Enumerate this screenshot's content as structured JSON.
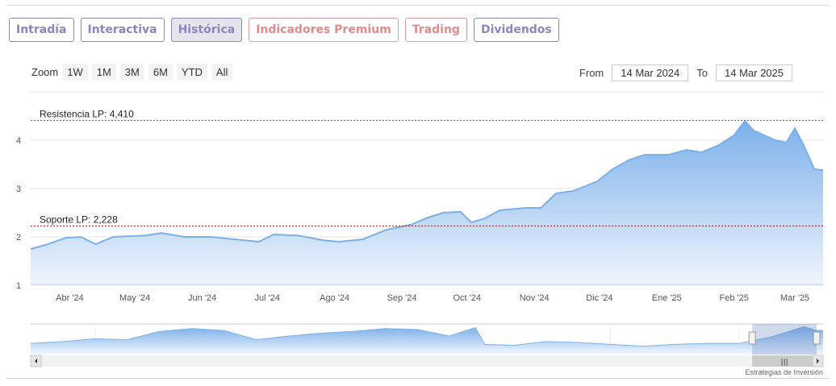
{
  "tabs": [
    {
      "label": "Intradía",
      "style": "normal"
    },
    {
      "label": "Interactiva",
      "style": "normal"
    },
    {
      "label": "Histórica",
      "style": "active"
    },
    {
      "label": "Indicadores Premium",
      "style": "red"
    },
    {
      "label": "Trading",
      "style": "red"
    },
    {
      "label": "Dividendos",
      "style": "normal"
    }
  ],
  "zoom": {
    "label": "Zoom",
    "buttons": [
      "1W",
      "1M",
      "3M",
      "6M",
      "YTD",
      "All"
    ]
  },
  "range": {
    "from_label": "From",
    "from": "14 Mar 2024",
    "to_label": "To",
    "to": "14 Mar 2025"
  },
  "credit": "Estrategias de Inversión",
  "chart_data": {
    "type": "area",
    "x_unit": "days since 14 Mar 2024",
    "xlim": [
      0,
      365
    ],
    "ylim": [
      0.9,
      4.65
    ],
    "yticks": [
      1,
      2,
      3,
      4
    ],
    "xticks": [
      {
        "day": 18,
        "label": "Abr '24"
      },
      {
        "day": 48,
        "label": "May '24"
      },
      {
        "day": 79,
        "label": "Jun '24"
      },
      {
        "day": 109,
        "label": "Jul '24"
      },
      {
        "day": 140,
        "label": "Ago '24"
      },
      {
        "day": 171,
        "label": "Sep '24"
      },
      {
        "day": 201,
        "label": "Oct '24"
      },
      {
        "day": 232,
        "label": "Nov '24"
      },
      {
        "day": 262,
        "label": "Dic '24"
      },
      {
        "day": 293,
        "label": "Ene '25"
      },
      {
        "day": 324,
        "label": "Feb '25"
      },
      {
        "day": 352,
        "label": "Mar '25"
      }
    ],
    "series": [
      [
        0,
        1.75
      ],
      [
        8,
        1.85
      ],
      [
        16,
        1.98
      ],
      [
        23,
        2.0
      ],
      [
        30,
        1.85
      ],
      [
        38,
        2.0
      ],
      [
        53,
        2.03
      ],
      [
        60,
        2.08
      ],
      [
        71,
        2.0
      ],
      [
        83,
        2.0
      ],
      [
        94,
        1.95
      ],
      [
        105,
        1.9
      ],
      [
        112,
        2.05
      ],
      [
        123,
        2.03
      ],
      [
        135,
        1.93
      ],
      [
        142,
        1.9
      ],
      [
        153,
        1.95
      ],
      [
        164,
        2.15
      ],
      [
        175,
        2.25
      ],
      [
        183,
        2.4
      ],
      [
        190,
        2.5
      ],
      [
        198,
        2.52
      ],
      [
        203,
        2.3
      ],
      [
        209,
        2.38
      ],
      [
        216,
        2.55
      ],
      [
        228,
        2.6
      ],
      [
        235,
        2.6
      ],
      [
        242,
        2.9
      ],
      [
        250,
        2.95
      ],
      [
        261,
        3.15
      ],
      [
        268,
        3.4
      ],
      [
        276,
        3.6
      ],
      [
        283,
        3.7
      ],
      [
        294,
        3.7
      ],
      [
        302,
        3.8
      ],
      [
        309,
        3.75
      ],
      [
        317,
        3.9
      ],
      [
        324,
        4.1
      ],
      [
        329,
        4.4
      ],
      [
        333,
        4.2
      ],
      [
        343,
        4.0
      ],
      [
        348,
        3.95
      ],
      [
        352,
        4.25
      ],
      [
        356,
        3.9
      ],
      [
        361,
        3.4
      ],
      [
        365,
        3.38
      ]
    ],
    "lines": [
      {
        "label": "Resistencia LP: 4,410",
        "value": 4.41,
        "color": "#2e7d32"
      },
      {
        "label": "Soporte LP: 2,228",
        "value": 2.228,
        "color": "#a01010"
      }
    ],
    "navigator": {
      "xlim": [
        2013,
        2025.3
      ],
      "ylim": [
        0,
        3.3
      ],
      "xticks": [
        "2014",
        "2016",
        "2018",
        "2020",
        "2022",
        "2024"
      ],
      "series": [
        [
          2013,
          1.2
        ],
        [
          2013.5,
          1.4
        ],
        [
          2014,
          1.7
        ],
        [
          2014.5,
          1.6
        ],
        [
          2015,
          2.5
        ],
        [
          2015.5,
          2.8
        ],
        [
          2016,
          2.6
        ],
        [
          2016.5,
          1.6
        ],
        [
          2017,
          2.0
        ],
        [
          2017.5,
          2.3
        ],
        [
          2018,
          2.5
        ],
        [
          2018.5,
          2.8
        ],
        [
          2019,
          2.7
        ],
        [
          2019.5,
          2.0
        ],
        [
          2019.9,
          2.9
        ],
        [
          2020.05,
          1.1
        ],
        [
          2020.5,
          1.0
        ],
        [
          2021,
          1.4
        ],
        [
          2021.5,
          1.3
        ],
        [
          2022,
          1.1
        ],
        [
          2022.5,
          0.9
        ],
        [
          2023,
          1.1
        ],
        [
          2023.5,
          1.2
        ],
        [
          2024,
          1.2
        ],
        [
          2024.5,
          1.9
        ],
        [
          2025,
          3.0
        ],
        [
          2025.2,
          2.6
        ],
        [
          2025.3,
          2.6
        ]
      ],
      "selected": [
        2024.2,
        2025.2
      ]
    }
  }
}
